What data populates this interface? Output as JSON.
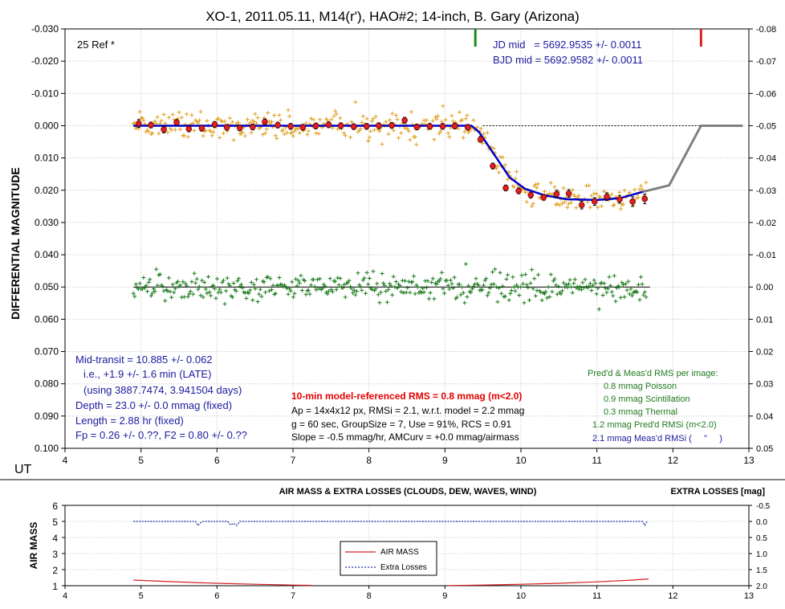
{
  "top_chart": {
    "title": "XO-1, 2011.05.11, M14(r'), HAO#2; 14-inch, B. Gary (Arizona)",
    "y_axis_label": "DIFFERENTIAL MAGNITUDE",
    "x_axis_label": "UT",
    "ref_label": "25 Ref *",
    "jd_mid": "JD mid   = 5692.9535 +/- 0.0011",
    "bjd_mid": "BJD mid = 5692.9582 +/- 0.0011",
    "left_info": [
      "Mid-transit = 10.885 +/- 0.062",
      "i.e., +1.9 +/- 1.6 min (LATE)",
      "(using 3887.7474, 3.941504 days)",
      "Depth = 23.0 +/- 0.0 mmag (fixed)",
      "Length = 2.88 hr (fixed)",
      "Fp = 0.26 +/- 0.??, F2 = 0.80 +/- 0.??"
    ],
    "rms_headline": "10-min model-referenced RMS = 0.8 mmag (m<2.0)",
    "center_info": [
      "Ap = 14x4x12 px, RMSi = 2.1, w.r.t. model = 2.2 mmag",
      "g = 60 sec, GroupSize = 7, Use = 91%, RCS = 0.91",
      "Slope = -0.5 mmag/hr, AMCurv = +0.0 mmag/airmass"
    ],
    "rms_box_title": "Pred'd & Meas'd RMS per image:",
    "rms_box_lines": [
      "0.8 mmag Poisson",
      "0.9 mmag Scintillation",
      "0.3 mmag Thermal",
      "1.2 mmag Pred'd  RMSi (m<2.0)",
      "2.1 mmag Meas'd RMSi (     \"     )"
    ],
    "colors": {
      "title": "#000000",
      "blue_text": "#1a1a9e",
      "green_text": "#1f7a1f",
      "red_text": "#e60000",
      "model": "#0000cc",
      "model_ext": "#808080",
      "raw": "#e0a020",
      "binned": "#e02020",
      "residual": "#1a7a1a",
      "ingress_marker": "#1a8a1a",
      "egress_marker": "#e02020"
    }
  },
  "bottom_chart": {
    "title": "AIR MASS & EXTRA LOSSES (CLOUDS, DEW, WAVES, WIND)",
    "right_title": "EXTRA LOSSES [mag]",
    "y_axis_label": "AIR MASS",
    "legend": [
      "AIR MASS",
      "Extra Losses"
    ],
    "colors": {
      "airmass": "#d42020",
      "losses": "#1a2aa0"
    }
  },
  "chart_data": [
    {
      "type": "scatter",
      "title": "XO-1, 2011.05.11, M14(r'), HAO#2; 14-inch, B. Gary (Arizona)",
      "xlabel": "UT",
      "ylabel": "DIFFERENTIAL MAGNITUDE",
      "xlim": [
        4,
        13
      ],
      "ylim": [
        -0.03,
        0.1
      ],
      "y_inverted": true,
      "y2lim": [
        -0.08,
        0.05
      ],
      "x_ticks": [
        "4",
        "5",
        "6",
        "7",
        "8",
        "9",
        "10",
        "11",
        "12",
        "13"
      ],
      "y_ticks": [
        "-0.030",
        "-0.020",
        "-0.010",
        "0.000",
        "0.010",
        "0.020",
        "0.030",
        "0.040",
        "0.050",
        "0.060",
        "0.070",
        "0.080",
        "0.090",
        "0.100"
      ],
      "y2_ticks": [
        "-0.08",
        "-0.07",
        "-0.06",
        "-0.05",
        "-0.04",
        "-0.03",
        "-0.02",
        "-0.01",
        "0.00",
        "0.01",
        "0.02",
        "0.03",
        "0.04",
        "0.05"
      ],
      "grid": true,
      "transit_markers": {
        "ingress": 9.4,
        "egress": 12.37
      },
      "model": {
        "x": [
          4.9,
          9.0,
          9.35,
          9.45,
          9.65,
          9.85,
          10.05,
          10.3,
          10.6,
          11.0,
          11.3,
          11.6
        ],
        "y": [
          0.0,
          0.0,
          0.0,
          0.002,
          0.009,
          0.016,
          0.0195,
          0.0215,
          0.0228,
          0.023,
          0.0225,
          0.0205
        ]
      },
      "model_extension": {
        "x": [
          11.6,
          11.95,
          12.37,
          12.92
        ],
        "y": [
          0.0205,
          0.0185,
          0.0,
          0.0
        ]
      },
      "baseline": {
        "x": [
          9.5,
          12.92
        ],
        "y": [
          0.0,
          0.0
        ]
      },
      "binned": {
        "x": [
          4.97,
          5.13,
          5.3,
          5.47,
          5.63,
          5.8,
          5.97,
          6.13,
          6.3,
          6.47,
          6.63,
          6.8,
          6.97,
          7.13,
          7.3,
          7.47,
          7.63,
          7.8,
          7.97,
          8.13,
          8.3,
          8.47,
          8.63,
          8.8,
          8.97,
          9.13,
          9.3,
          9.47,
          9.63,
          9.8,
          9.97,
          10.13,
          10.3,
          10.47,
          10.63,
          10.8,
          10.97,
          11.13,
          11.3,
          11.47,
          11.63
        ],
        "y": [
          -0.0007,
          -0.0002,
          0.0012,
          -0.001,
          0.001,
          0.0008,
          -0.0004,
          0.0005,
          0.0007,
          0.0004,
          -0.0012,
          -0.0002,
          0.0002,
          0.0005,
          0.0001,
          -0.0003,
          0.0,
          0.0003,
          0.0002,
          0.0,
          -0.0001,
          -0.0017,
          0.0004,
          0.0002,
          0.0002,
          0.0001,
          0.0005,
          0.0042,
          0.0125,
          0.0193,
          0.0202,
          0.0215,
          0.0222,
          0.0212,
          0.021,
          0.0246,
          0.0235,
          0.022,
          0.0228,
          0.0235,
          0.0227
        ],
        "yerr": [
          0.0012,
          0.0009,
          0.001,
          0.0009,
          0.0009,
          0.0009,
          0.0009,
          0.0009,
          0.0009,
          0.0009,
          0.0009,
          0.0009,
          0.0009,
          0.0009,
          0.0009,
          0.0009,
          0.0009,
          0.0009,
          0.0009,
          0.0009,
          0.0009,
          0.0009,
          0.0009,
          0.0009,
          0.0009,
          0.0009,
          0.0009,
          0.0009,
          0.0009,
          0.0009,
          0.0009,
          0.0009,
          0.0009,
          0.0012,
          0.0012,
          0.0012,
          0.0012,
          0.0012,
          0.0012,
          0.0015,
          0.0015
        ]
      },
      "residual_level": 0.05,
      "residual_scatter_mag": 0.0021,
      "raw_scatter_mag": 0.0021,
      "raw_x_range": [
        4.9,
        11.65
      ]
    },
    {
      "type": "line",
      "title": "AIR MASS & EXTRA LOSSES (CLOUDS, DEW, WAVES, WIND)",
      "ylabel": "AIR MASS",
      "xlim": [
        4,
        13
      ],
      "ylim": [
        1,
        6
      ],
      "y2lim": [
        -0.5,
        2.0
      ],
      "y2_inverted": true,
      "x_ticks": [
        "4",
        "5",
        "6",
        "7",
        "8",
        "9",
        "10",
        "11",
        "12",
        "13"
      ],
      "y_ticks": [
        "1",
        "2",
        "3",
        "4",
        "5",
        "6"
      ],
      "y2_ticks": [
        "-0.5",
        "0.0",
        "0.5",
        "1.0",
        "1.5",
        "2.0"
      ],
      "series": [
        {
          "name": "AIR MASS",
          "x": [
            4.9,
            5.5,
            6.0,
            6.5,
            7.0,
            7.25
          ],
          "y": [
            1.35,
            1.23,
            1.15,
            1.09,
            1.04,
            1.02
          ]
        },
        {
          "name": "AIR MASS",
          "x": [
            9.05,
            9.5,
            10.0,
            10.5,
            11.0,
            11.4,
            11.68
          ],
          "y": [
            1.01,
            1.04,
            1.09,
            1.15,
            1.24,
            1.33,
            1.42
          ]
        },
        {
          "name": "Extra Losses",
          "x": [
            4.9,
            5.72,
            5.75,
            5.78,
            5.81,
            6.14,
            6.18,
            6.22,
            6.26,
            6.3,
            11.6,
            11.63,
            11.66
          ],
          "y": [
            0.0,
            0.0,
            0.13,
            0.05,
            0.0,
            0.0,
            0.11,
            0.06,
            0.13,
            0.0,
            0.0,
            0.12,
            0.0
          ]
        }
      ]
    }
  ]
}
